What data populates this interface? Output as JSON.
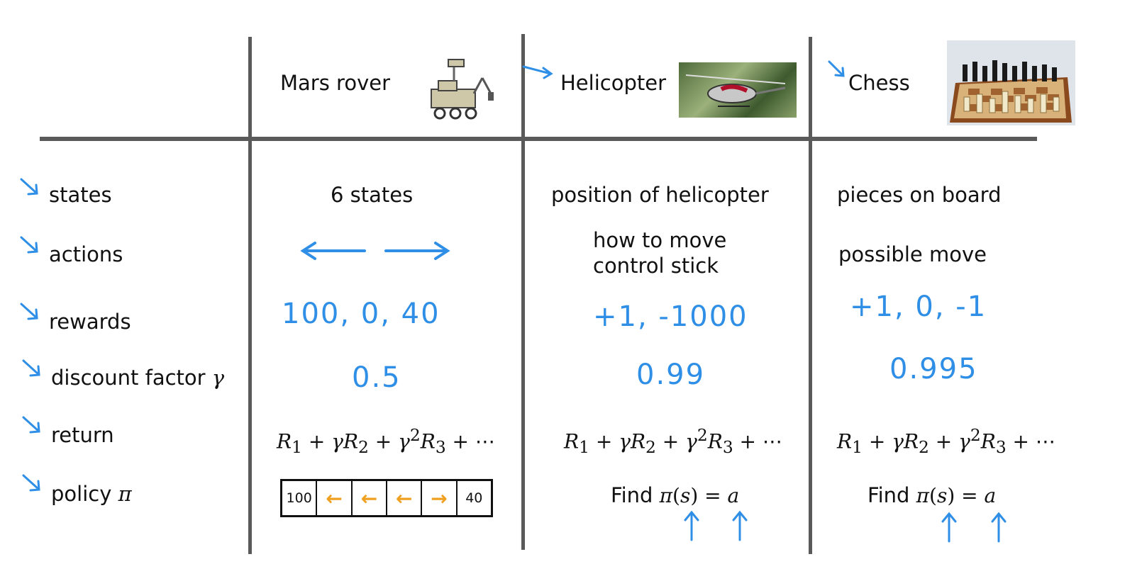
{
  "columns": {
    "mars": {
      "title": "Mars rover",
      "icon": "mars-rover-icon"
    },
    "heli": {
      "title": "Helicopter",
      "icon": "helicopter-photo"
    },
    "chess": {
      "title": "Chess",
      "icon": "chessboard-photo"
    }
  },
  "rows": {
    "states": "states",
    "actions": "actions",
    "rewards": "rewards",
    "discount": "discount factor",
    "discount_symbol": "γ",
    "return": "return",
    "policy": "policy",
    "policy_symbol": "π"
  },
  "mars": {
    "states": "6 states",
    "rewards": "100, 0, 40",
    "discount": "0.5",
    "policy_cells": [
      "100",
      "←",
      "←",
      "←",
      "→",
      "40"
    ]
  },
  "heli": {
    "states": "position of helicopter",
    "actions_line1": "how to move",
    "actions_line2": "control stick",
    "rewards": "+1, -1000",
    "discount": "0.99",
    "policy_find": "Find"
  },
  "chess": {
    "states": "pieces on board",
    "actions": "possible move",
    "rewards": "+1, 0, -1",
    "discount": "0.995",
    "policy_find": "Find"
  },
  "colors": {
    "ink_blue": "#2f8fe6",
    "grid": "#5a5a5a",
    "policy_arrow": "#f0a020"
  }
}
